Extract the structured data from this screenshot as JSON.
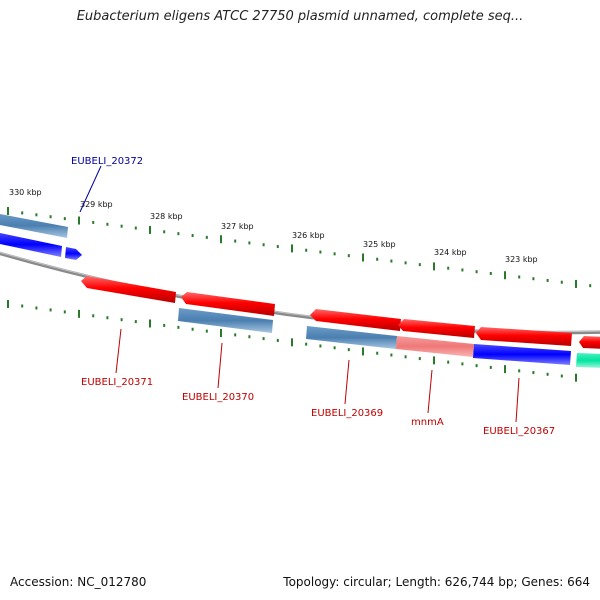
{
  "header": {
    "title": "Eubacterium eligens ATCC 27750 plasmid unnamed, complete seq..."
  },
  "footer": {
    "accession": "Accession: NC_012780",
    "summary": "Topology: circular; Length: 626,744 bp; Genes: 664"
  },
  "colors": {
    "backbone": "#888888",
    "tick": "#2a7a2a",
    "label_red": "#c00000",
    "label_blue": "#000099",
    "red": "#ff0000",
    "steel": "#4a7fb0",
    "blue": "#0000ff",
    "salmon": "#f07878",
    "teal": "#00e5a0"
  },
  "scale": {
    "tick_labels": [
      "330 kbp",
      "329 kbp",
      "328 kbp",
      "327 kbp",
      "326 kbp",
      "325 kbp",
      "324 kbp",
      "323 kbp"
    ]
  },
  "genes": {
    "labels": [
      "EUBELI_20372",
      "EUBELI_20371",
      "EUBELI_20370",
      "EUBELI_20369",
      "mnmA",
      "EUBELI_20367"
    ]
  }
}
